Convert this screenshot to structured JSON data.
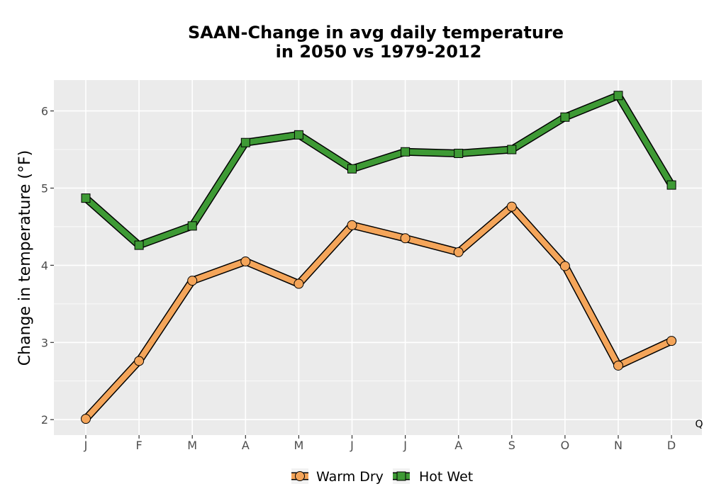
{
  "chart_data": {
    "type": "line",
    "title_line1": "SAAN-Change in avg daily temperature",
    "title_line2": "in 2050 vs 1979-2012",
    "xlabel": "",
    "ylabel": "Change in temperature (°F)",
    "categories": [
      "J",
      "F",
      "M",
      "A",
      "M",
      "J",
      "J",
      "A",
      "S",
      "O",
      "N",
      "D"
    ],
    "ylim": [
      1.8,
      6.4
    ],
    "yticks": [
      2,
      3,
      4,
      5,
      6
    ],
    "grid": true,
    "legend_position": "bottom",
    "corner_note": "Q",
    "series": [
      {
        "name": "Warm Dry",
        "marker": "circle",
        "color": "#f4a55a",
        "values": [
          2.01,
          2.76,
          3.8,
          4.05,
          3.76,
          4.52,
          4.35,
          4.17,
          4.76,
          3.99,
          2.7,
          3.02
        ]
      },
      {
        "name": "Hot Wet",
        "marker": "square",
        "color": "#3e9a35",
        "values": [
          4.87,
          4.26,
          4.51,
          5.59,
          5.69,
          5.25,
          5.47,
          5.45,
          5.5,
          5.92,
          6.2,
          5.04
        ]
      }
    ]
  },
  "colors": {
    "panel_background": "#ebebeb",
    "grid_major": "#ffffff",
    "marker_outline": "#000000"
  }
}
